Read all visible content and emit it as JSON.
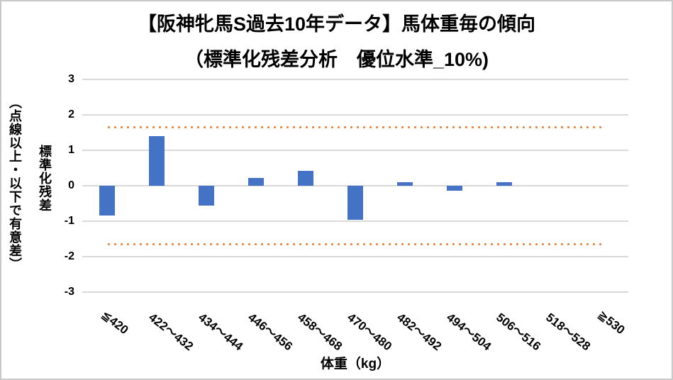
{
  "chart_data": {
    "type": "bar",
    "title_line1": "【阪神牝馬S過去10年データ】馬体重毎の傾向",
    "title_line2": "（標準化残差分析　優位水準_10%)",
    "xlabel": "体重（kg）",
    "ylabel": "標準化残差",
    "ylabel_note": "（点線以上・以下で有意差）",
    "categories": [
      "≦420",
      "422～432",
      "434～444",
      "446～456",
      "458～468",
      "470～480",
      "482～492",
      "494～504",
      "506～516",
      "518～528",
      "≧530"
    ],
    "values": [
      -0.83,
      1.4,
      -0.55,
      0.23,
      0.43,
      -0.95,
      0.1,
      -0.13,
      0.1,
      0,
      0
    ],
    "significance_band": {
      "upper": 1.645,
      "lower": -1.645,
      "style": "dotted"
    },
    "yticks": [
      "3",
      "2",
      "1",
      "0",
      "-1",
      "-2",
      "-3"
    ],
    "ylim": [
      -3,
      3
    ],
    "grid": true,
    "legend": false,
    "colors": {
      "bar": "#4472C4",
      "band": "#ED7D31",
      "gridline": "#D9D9D9",
      "text": "#000000",
      "border": "#C9C9C9",
      "background": "#FFFFFF"
    }
  }
}
